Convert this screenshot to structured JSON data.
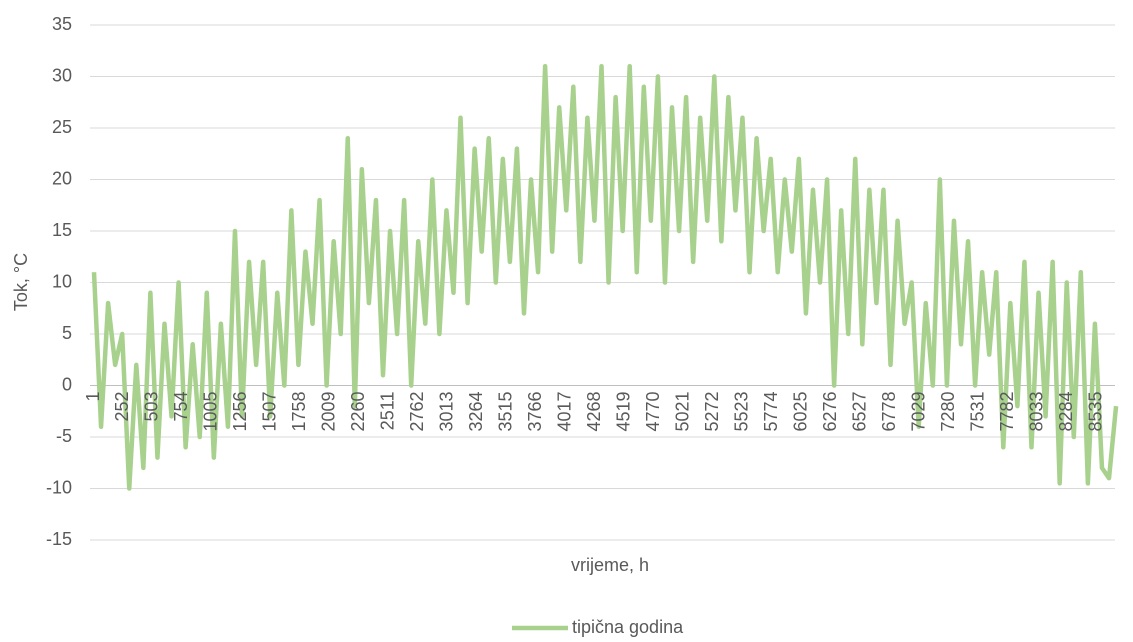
{
  "chart_data": {
    "type": "line",
    "y_label": "Tok, °C",
    "x_label": "vrijeme, h",
    "xlim": [
      1,
      8760
    ],
    "xticks": [
      1,
      252,
      503,
      754,
      1005,
      1256,
      1507,
      1758,
      2009,
      2260,
      2511,
      2762,
      3013,
      3264,
      3515,
      3766,
      4017,
      4268,
      4519,
      4770,
      5021,
      5272,
      5523,
      5774,
      6025,
      6276,
      6527,
      6778,
      7029,
      7280,
      7531,
      7782,
      8033,
      8284,
      8535
    ],
    "ylim": [
      -15,
      35
    ],
    "yticks": [
      -15,
      -10,
      -5,
      0,
      5,
      10,
      15,
      20,
      25,
      30,
      35
    ],
    "grid": true,
    "legend": "bottom",
    "x": [
      1,
      61,
      121,
      181,
      241,
      301,
      361,
      421,
      481,
      541,
      601,
      661,
      721,
      781,
      841,
      901,
      961,
      1021,
      1081,
      1141,
      1201,
      1261,
      1321,
      1381,
      1441,
      1501,
      1561,
      1621,
      1681,
      1741,
      1801,
      1861,
      1921,
      1981,
      2041,
      2101,
      2161,
      2221,
      2281,
      2341,
      2401,
      2461,
      2521,
      2581,
      2641,
      2701,
      2761,
      2821,
      2881,
      2941,
      3001,
      3061,
      3121,
      3181,
      3241,
      3301,
      3361,
      3421,
      3481,
      3541,
      3601,
      3661,
      3721,
      3781,
      3841,
      3901,
      3961,
      4021,
      4081,
      4141,
      4201,
      4261,
      4321,
      4381,
      4441,
      4501,
      4561,
      4621,
      4681,
      4741,
      4801,
      4861,
      4921,
      4981,
      5041,
      5101,
      5161,
      5221,
      5281,
      5341,
      5401,
      5461,
      5521,
      5581,
      5641,
      5701,
      5761,
      5821,
      5881,
      5941,
      6001,
      6061,
      6121,
      6181,
      6241,
      6301,
      6361,
      6421,
      6481,
      6541,
      6601,
      6661,
      6721,
      6781,
      6841,
      6901,
      6961,
      7021,
      7081,
      7141,
      7201,
      7261,
      7321,
      7381,
      7441,
      7501,
      7561,
      7621,
      7681,
      7741,
      7801,
      7861,
      7921,
      7981,
      8041,
      8101,
      8161,
      8221,
      8281,
      8341,
      8401,
      8461,
      8521,
      8581,
      8641,
      8701
    ],
    "series": [
      {
        "name": "tipična godina",
        "color": "#a9d18e",
        "values": [
          11,
          -4,
          8,
          2,
          5,
          -10,
          2,
          -8,
          9,
          -7,
          6,
          -3,
          10,
          -6,
          4,
          -5,
          9,
          -7,
          6,
          -4,
          15,
          -3,
          12,
          2,
          12,
          -3,
          9,
          0,
          17,
          2,
          13,
          6,
          18,
          0,
          14,
          5,
          24,
          -2,
          21,
          8,
          18,
          1,
          15,
          5,
          18,
          0,
          14,
          6,
          20,
          5,
          17,
          9,
          26,
          8,
          23,
          13,
          24,
          10,
          22,
          12,
          23,
          7,
          20,
          11,
          31,
          13,
          27,
          17,
          29,
          12,
          26,
          16,
          31,
          10,
          28,
          15,
          31,
          11,
          29,
          16,
          30,
          10,
          27,
          15,
          28,
          12,
          26,
          16,
          30,
          14,
          28,
          17,
          26,
          11,
          24,
          15,
          22,
          11,
          20,
          13,
          22,
          7,
          19,
          10,
          20,
          0,
          17,
          5,
          22,
          4,
          19,
          8,
          19,
          2,
          16,
          6,
          10,
          -4,
          8,
          0,
          20,
          0,
          16,
          4,
          14,
          0,
          11,
          3,
          11,
          -6,
          8,
          -2,
          12,
          -6,
          9,
          -3,
          12,
          -9.5,
          10,
          -5,
          11,
          -9.5,
          6,
          -8,
          -9,
          -2
        ]
      }
    ]
  }
}
